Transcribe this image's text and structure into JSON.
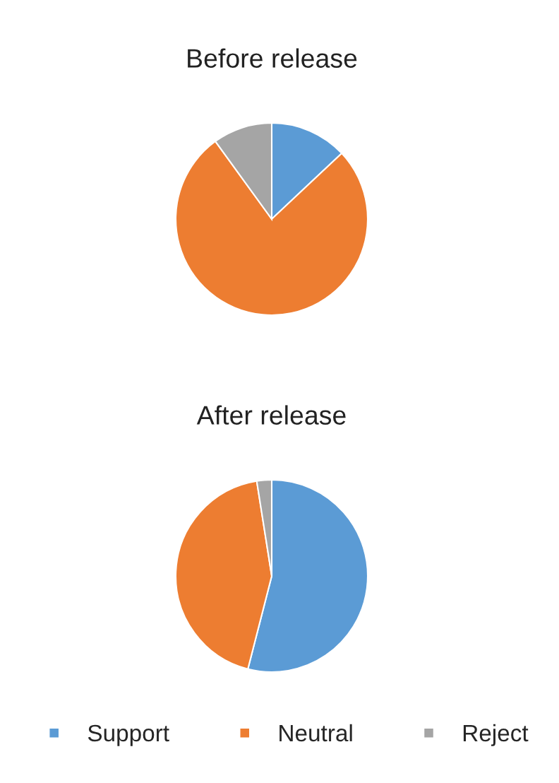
{
  "chart_data": [
    {
      "type": "pie",
      "title": "Before release",
      "categories": [
        "Support",
        "Neutral",
        "Reject"
      ],
      "values": [
        13,
        77,
        10
      ],
      "colors": [
        "#5b9bd5",
        "#ed7d31",
        "#a5a5a5"
      ],
      "legend": "bottom"
    },
    {
      "type": "pie",
      "title": "After release",
      "categories": [
        null,
        null,
        null
      ],
      "values": [
        54,
        43.5,
        2.5
      ],
      "colors": [
        "#5b9bd5",
        "#ed7d31",
        "#a5a5a5"
      ]
    }
  ]
}
